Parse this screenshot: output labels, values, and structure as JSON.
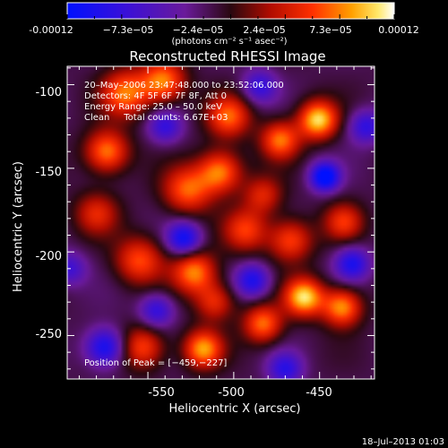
{
  "chart_data": {
    "type": "heatmap",
    "title": "Reconstructed RHESSI Image",
    "xlabel": "Heliocentric X (arcsec)",
    "ylabel": "Heliocentric Y (arcsec)",
    "xlim": [
      -597,
      -418
    ],
    "ylim": [
      -276,
      -89
    ],
    "x_ticks": [
      -550,
      -500,
      -450
    ],
    "y_ticks": [
      -100,
      -150,
      -200,
      -250
    ],
    "colorbar": {
      "ticks": [
        "-0.00012",
        "−7.3e−05",
        "−2.4e−05",
        "2.4e−05",
        "7.3e−05",
        "0.00012"
      ],
      "unit_label": "(photons cm⁻² s⁻¹ asec⁻²)",
      "range": [
        -0.00012,
        0.00012
      ]
    },
    "annotations": [
      "20–May–2006 23:47:48.000 to 23:52:06.000",
      "Detectors: 4F 5F 6F 7F 8F, Att 0",
      "Energy Range: 25.0 – 50.0 keV",
      "Clean     Total counts: 6.67E+03"
    ],
    "peak_label": "Position of Peak = [−459,−227]",
    "footer_date": "18–Jul–2013 01:03",
    "sources": [
      {
        "x": -451,
        "y": -121,
        "amp": 1.0,
        "s": 8
      },
      {
        "x": -473,
        "y": -133,
        "amp": 0.75,
        "s": 8
      },
      {
        "x": -503,
        "y": -119,
        "amp": 0.7,
        "s": 9
      },
      {
        "x": -541,
        "y": -98,
        "amp": 0.8,
        "s": 9
      },
      {
        "x": -563,
        "y": -105,
        "amp": 0.75,
        "s": 10
      },
      {
        "x": -574,
        "y": -140,
        "amp": 0.8,
        "s": 9
      },
      {
        "x": -527,
        "y": -163,
        "amp": 0.7,
        "s": 10
      },
      {
        "x": -508,
        "y": -152,
        "amp": 0.8,
        "s": 9
      },
      {
        "x": -483,
        "y": -166,
        "amp": 0.5,
        "s": 8
      },
      {
        "x": -493,
        "y": -187,
        "amp": 0.6,
        "s": 9
      },
      {
        "x": -467,
        "y": -193,
        "amp": 0.65,
        "s": 9
      },
      {
        "x": -436,
        "y": -182,
        "amp": 0.55,
        "s": 8
      },
      {
        "x": -555,
        "y": -205,
        "amp": 0.65,
        "s": 10
      },
      {
        "x": -523,
        "y": -212,
        "amp": 0.8,
        "s": 9
      },
      {
        "x": -511,
        "y": -230,
        "amp": 0.55,
        "s": 8
      },
      {
        "x": -459,
        "y": -227,
        "amp": 1.0,
        "s": 8
      },
      {
        "x": -437,
        "y": -233,
        "amp": 0.85,
        "s": 8
      },
      {
        "x": -483,
        "y": -243,
        "amp": 0.75,
        "s": 8
      },
      {
        "x": -518,
        "y": -258,
        "amp": 0.85,
        "s": 8
      },
      {
        "x": -553,
        "y": -257,
        "amp": 0.65,
        "s": 9
      },
      {
        "x": -580,
        "y": -177,
        "amp": 0.5,
        "s": 9
      },
      {
        "x": -447,
        "y": -155,
        "amp": -1.0,
        "s": 6
      },
      {
        "x": -529,
        "y": -192,
        "amp": -0.8,
        "s": 7
      },
      {
        "x": -489,
        "y": -217,
        "amp": -0.7,
        "s": 7
      },
      {
        "x": -575,
        "y": -257,
        "amp": -0.8,
        "s": 8
      },
      {
        "x": -431,
        "y": -207,
        "amp": -0.7,
        "s": 7
      },
      {
        "x": -485,
        "y": -101,
        "amp": -0.55,
        "s": 7
      },
      {
        "x": -540,
        "y": -125,
        "amp": -0.55,
        "s": 7
      },
      {
        "x": -545,
        "y": -235,
        "amp": -0.6,
        "s": 7
      },
      {
        "x": -596,
        "y": -210,
        "amp": -0.5,
        "s": 7
      },
      {
        "x": -470,
        "y": -270,
        "amp": -0.6,
        "s": 7
      },
      {
        "x": -423,
        "y": -125,
        "amp": -0.6,
        "s": 7
      }
    ]
  }
}
